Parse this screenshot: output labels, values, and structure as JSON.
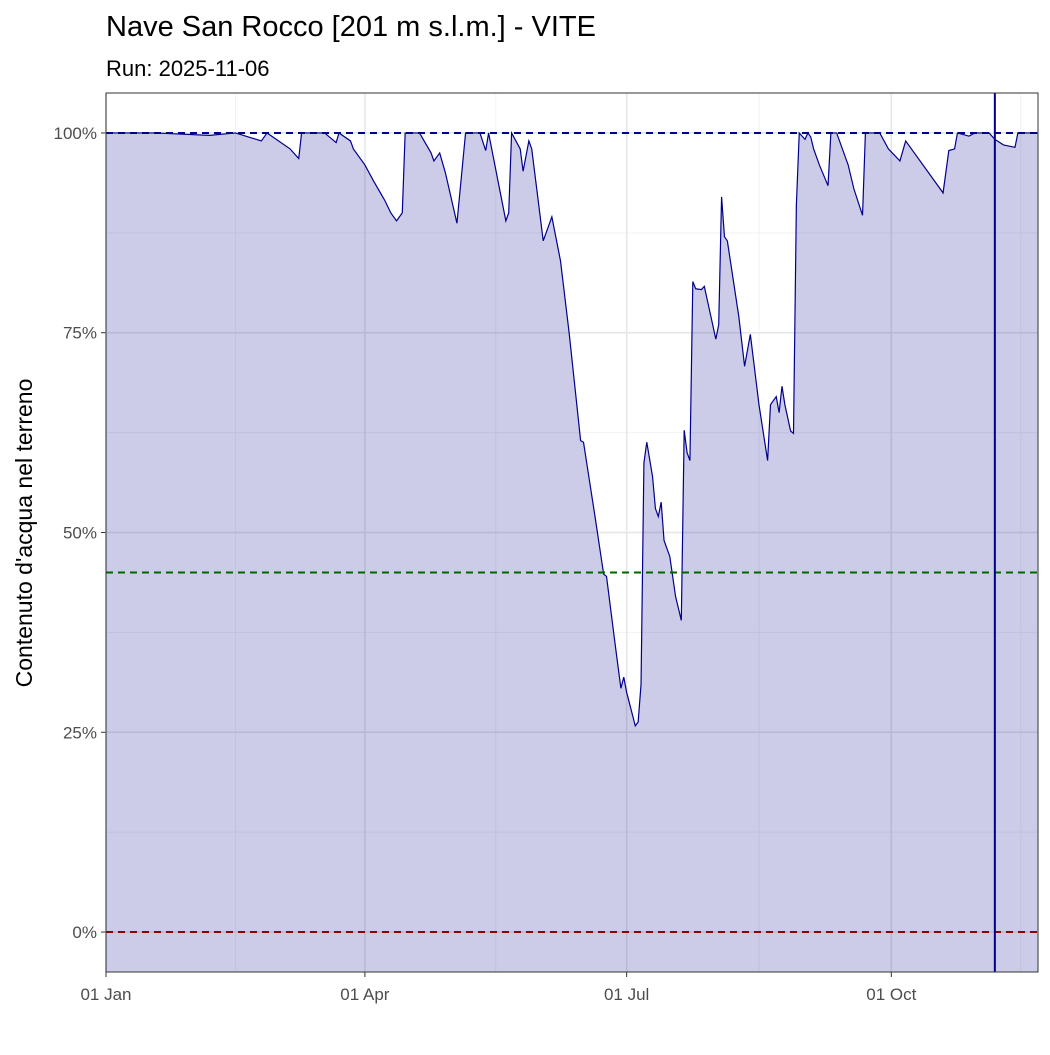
{
  "chart_data": {
    "type": "area",
    "title": "Nave San Rocco [201 m s.l.m.] - VITE",
    "subtitle": "Run: 2025-11-06",
    "y_label": "Contenuto d'acqua nel terreno",
    "line_color": "#00008b",
    "fill_color": "#00008b",
    "grid": true,
    "xlim": [
      0,
      324
    ],
    "xticks": [
      {
        "value": 0,
        "label": "01 Jan"
      },
      {
        "value": 90,
        "label": "01 Apr"
      },
      {
        "value": 181,
        "label": "01 Jul"
      },
      {
        "value": 273,
        "label": "01 Oct"
      }
    ],
    "xminor": [
      45,
      135.5,
      227,
      318
    ],
    "ylim": [
      -5,
      105
    ],
    "yticks": [
      {
        "value": 0,
        "label": "0%"
      },
      {
        "value": 25,
        "label": "25%"
      },
      {
        "value": 50,
        "label": "50%"
      },
      {
        "value": 75,
        "label": "75%"
      },
      {
        "value": 100,
        "label": "100%"
      }
    ],
    "yminor": [
      12.5,
      37.5,
      62.5,
      87.5
    ],
    "hlines": [
      {
        "value": 100,
        "color": "#00008b"
      },
      {
        "value": 45,
        "color": "#006400"
      },
      {
        "value": 0,
        "color": "#8b0000"
      }
    ],
    "vlines": [
      {
        "value": 309,
        "color": "#00008b"
      }
    ],
    "x": [
      0,
      17,
      36,
      45,
      54,
      56,
      64,
      67,
      68,
      76,
      80,
      81,
      85,
      86,
      90,
      93,
      97,
      99,
      101,
      103,
      104,
      109,
      113,
      114,
      116,
      118,
      122,
      125,
      130,
      132,
      133,
      139,
      140,
      141,
      144,
      145,
      147,
      148,
      152,
      155,
      158,
      161,
      165,
      166,
      170,
      173,
      174,
      177,
      179,
      180,
      181,
      184,
      185,
      186,
      187,
      188,
      190,
      191,
      192,
      193,
      194,
      196,
      198,
      200,
      201,
      202,
      203,
      204,
      205,
      207,
      208,
      212,
      213,
      214,
      215,
      216,
      220,
      222,
      224,
      227,
      230,
      231,
      233,
      234,
      235,
      236,
      238,
      239,
      240,
      241,
      243,
      244,
      245,
      246,
      248,
      251,
      252,
      254,
      256,
      258,
      260,
      263,
      264,
      269,
      272,
      276,
      278,
      281,
      286,
      291,
      293,
      295,
      296,
      300,
      302,
      307,
      309,
      312,
      316,
      317,
      324
    ],
    "values": [
      100,
      100,
      99.7,
      100,
      99,
      100,
      98,
      96.8,
      100,
      100,
      98.8,
      100,
      99,
      98,
      96,
      94,
      91.5,
      90,
      89,
      90,
      100,
      100,
      97.5,
      96.5,
      97.5,
      95,
      88.7,
      100,
      100,
      97.8,
      100,
      89,
      90,
      100,
      98,
      95.2,
      99,
      98,
      86.5,
      89.5,
      84,
      75,
      61.5,
      61.3,
      52,
      44.8,
      44.5,
      36,
      30.5,
      31.9,
      30,
      25.8,
      26.3,
      31,
      58.7,
      61.3,
      57,
      53,
      52,
      53.8,
      49,
      47,
      42,
      39,
      62.8,
      60,
      59,
      81.4,
      80.5,
      80.4,
      80.8,
      74.2,
      76,
      92,
      87,
      86.5,
      77,
      70.8,
      74.8,
      66,
      59,
      66,
      67,
      65,
      68.3,
      66,
      62.7,
      62.4,
      91,
      100,
      99.2,
      100,
      99.5,
      98,
      96,
      93.4,
      100,
      100,
      98,
      96,
      93,
      89.7,
      100,
      100,
      98,
      96.5,
      99,
      97.5,
      95,
      92.5,
      97.8,
      98,
      100,
      99.6,
      100,
      100,
      99.2,
      98.5,
      98.2,
      100,
      100
    ]
  }
}
